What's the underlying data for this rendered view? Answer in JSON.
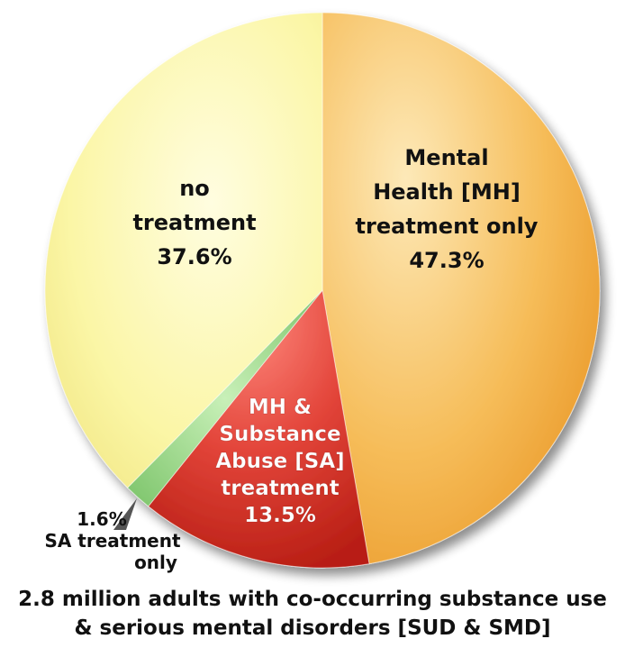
{
  "chart_data": {
    "type": "pie",
    "slices": [
      {
        "label_lines": [
          "Mental",
          "Health [MH]",
          "treatment only"
        ],
        "value_text": "47.3%",
        "value": 47.3,
        "color": "#f2a93b"
      },
      {
        "label_lines": [
          "MH &",
          "Substance",
          "Abuse [SA]",
          "treatment"
        ],
        "value_text": "13.5%",
        "value": 13.5,
        "color": "#d9342b"
      },
      {
        "label_lines": [
          "SA treatment",
          "only"
        ],
        "value_text": "1.6%",
        "value": 1.6,
        "color": "#9ed98e"
      },
      {
        "label_lines": [
          "no",
          "treatment"
        ],
        "value_text": "37.6%",
        "value": 37.6,
        "color": "#f8f39a"
      }
    ],
    "caption_lines": [
      "2.8 million adults with co-occurring substance use",
      "& serious mental disorders [SUD & SMD]"
    ]
  }
}
